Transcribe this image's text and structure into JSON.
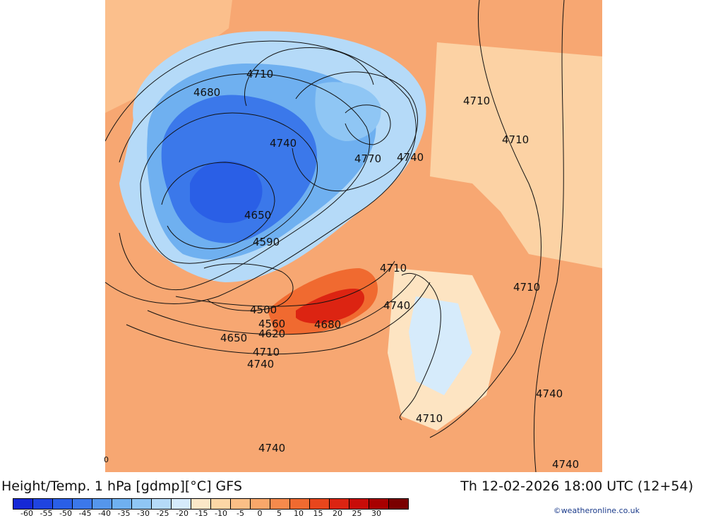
{
  "header": {
    "title": "Height/Temp. 1 hPa [gdmp][°C] GFS",
    "datetime": "Th 12-02-2026 18:00 UTC (12+54)"
  },
  "map": {
    "contour_labels": [
      "4710",
      "4680",
      "4740",
      "4770",
      "4740",
      "4710",
      "4710",
      "4650",
      "4590",
      "4710",
      "4710",
      "4500",
      "4740",
      "4560",
      "4680",
      "4620",
      "4650",
      "4710",
      "4740",
      "4740",
      "4710",
      "4740",
      "4740"
    ],
    "corner_label": "0"
  },
  "legend": {
    "ticks": [
      "-60",
      "-55",
      "-50",
      "-45",
      "-40",
      "-35",
      "-30",
      "-25",
      "-20",
      "-15",
      "-10",
      "-5",
      "0",
      "5",
      "10",
      "15",
      "20",
      "25",
      "30"
    ],
    "colors": [
      "#1528d6",
      "#1f44e0",
      "#2a5fe6",
      "#3b78ea",
      "#5596ec",
      "#6fb0f0",
      "#8fc6f4",
      "#b5daf8",
      "#d6ebfb",
      "#fbe8c8",
      "#fcd7a6",
      "#fbbf86",
      "#f9a76a",
      "#f58a4c",
      "#f06a30",
      "#e8461c",
      "#dc2412",
      "#c80c08",
      "#a80000",
      "#7a0000"
    ]
  },
  "footer": {
    "credit": "©weatheronline.co.uk"
  }
}
